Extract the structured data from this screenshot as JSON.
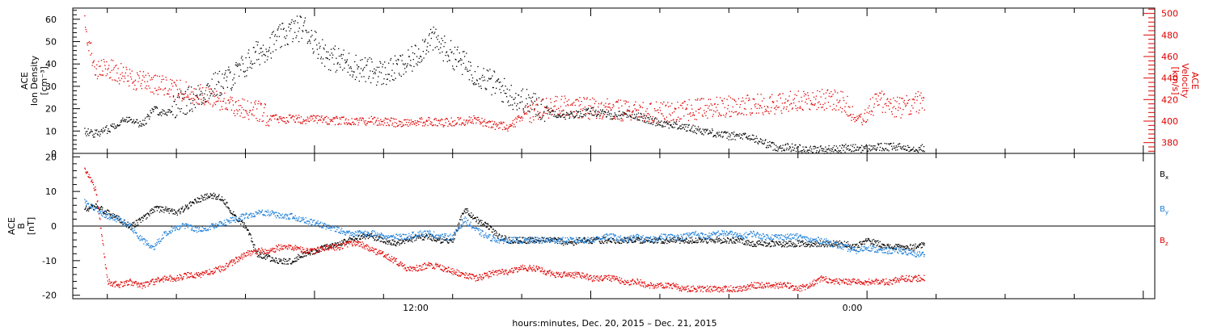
{
  "colors": {
    "black": "#000000",
    "red": "#e00000",
    "blue": "#1e7fd8"
  },
  "chart_data": [
    {
      "type": "scatter",
      "panel": "plasma",
      "ylabel_lines": [
        "ACE",
        "Ion Density",
        "[cm⁻³]"
      ],
      "ylim": [
        0,
        65
      ],
      "yticks": [
        0,
        10,
        20,
        30,
        40,
        50,
        60
      ],
      "y2label_lines": [
        "ACE",
        "Velocity",
        "[km/s]"
      ],
      "y2lim": [
        370,
        505
      ],
      "y2ticks": [
        380,
        400,
        420,
        440,
        460,
        480,
        500
      ],
      "grid": false,
      "series": [
        {
          "axis": "left",
          "color": "#000000",
          "x": [
            -10,
            -9.5,
            -9,
            -8.5,
            -8,
            -7.5,
            -7,
            -6.5,
            -6,
            -5.5,
            -5,
            -4.5,
            -4,
            -3.5,
            -3,
            -2.5,
            -2,
            -1.5,
            -1,
            -0.5,
            0,
            0.5,
            1,
            1.5,
            2,
            2.5,
            3,
            3.5,
            4,
            4.5,
            5,
            5.5,
            6,
            6.5,
            7,
            7.5,
            8,
            8.5,
            9,
            9.5,
            10,
            10.5,
            11,
            11.5,
            12,
            12.5,
            13,
            13.5,
            14,
            14.5,
            15,
            15.5,
            16,
            16.5,
            17,
            17.5,
            18,
            18.5,
            19,
            19.5,
            20,
            20.5,
            21,
            21.5,
            22,
            22.5,
            23,
            23.5,
            24,
            24.5,
            25,
            25.5,
            26,
            26.5
          ],
          "y": [
            10,
            9,
            11,
            14,
            16,
            13,
            20,
            18,
            22,
            24,
            26,
            30,
            32,
            35,
            40,
            45,
            48,
            52,
            55,
            57,
            50,
            44,
            42,
            40,
            38,
            37,
            36,
            38,
            40,
            45,
            52,
            48,
            44,
            40,
            36,
            33,
            30,
            26,
            24,
            22,
            20,
            18,
            17,
            18,
            19,
            18,
            17,
            18,
            17,
            15,
            14,
            13,
            12,
            11,
            10,
            9,
            8,
            8,
            7,
            5,
            3,
            3,
            2.5,
            2,
            2,
            2,
            2.5,
            2.5,
            2.5,
            3,
            3,
            3,
            2.5,
            2.5
          ]
        },
        {
          "axis": "right",
          "color": "#e00000",
          "x": [
            -10,
            -9.5,
            -9,
            -8.5,
            -8,
            -7.5,
            -7,
            -6.5,
            -6,
            -5.5,
            -5,
            -4.5,
            -4,
            -3.5,
            -3,
            -2.5,
            -2,
            -1.5,
            -1,
            -0.5,
            0,
            0.5,
            1,
            1.5,
            2,
            2.5,
            3,
            3.5,
            4,
            4.5,
            5,
            5.5,
            6,
            6.5,
            7,
            7.5,
            8,
            8.5,
            9,
            9.5,
            10,
            10.5,
            11,
            11.5,
            12,
            12.5,
            13,
            13.5,
            14,
            14.5,
            15,
            15.5,
            16,
            16.5,
            17,
            17.5,
            18,
            18.5,
            19,
            19.5,
            20,
            20.5,
            21,
            21.5,
            22,
            22.5,
            23,
            23.5,
            24,
            24.5,
            25,
            25.5,
            26,
            26.5
          ],
          "y": [
            490,
            445,
            450,
            445,
            440,
            438,
            435,
            432,
            430,
            428,
            425,
            422,
            420,
            415,
            412,
            410,
            405,
            402,
            403,
            402,
            402,
            401,
            401,
            400,
            400,
            401,
            400,
            399,
            399,
            400,
            400,
            399,
            400,
            400,
            402,
            398,
            396,
            395,
            405,
            410,
            412,
            415,
            414,
            413,
            412,
            412,
            410,
            410,
            409,
            409,
            408,
            409,
            410,
            411,
            412,
            413,
            414,
            415,
            416,
            416,
            417,
            418,
            419,
            421,
            421,
            420,
            418,
            400,
            410,
            420,
            415,
            412,
            418,
            418
          ]
        }
      ]
    },
    {
      "type": "scatter",
      "panel": "magnetic-field",
      "ylabel_lines": [
        "ACE",
        "B",
        "[nT]"
      ],
      "ylim": [
        -21,
        21
      ],
      "yticks": [
        -20,
        -10,
        0,
        10,
        20
      ],
      "zero_line": true,
      "grid": false,
      "series": [
        {
          "name": "Bx",
          "color": "#000000",
          "x": [
            -10,
            -9.5,
            -9,
            -8.5,
            -8,
            -7.5,
            -7,
            -6.5,
            -6,
            -5.5,
            -5,
            -4.5,
            -4,
            -3.5,
            -3,
            -2.5,
            -2,
            -1.5,
            -1,
            -0.5,
            0,
            0.5,
            1,
            1.5,
            2,
            2.5,
            3,
            3.5,
            4,
            4.5,
            5,
            5.5,
            6,
            6.5,
            7,
            7.5,
            8,
            8.5,
            9,
            9.5,
            10,
            10.5,
            11,
            11.5,
            12,
            12.5,
            13,
            13.5,
            14,
            14.5,
            15,
            15.5,
            16,
            16.5,
            17,
            17.5,
            18,
            18.5,
            19,
            19.5,
            20,
            20.5,
            21,
            21.5,
            22,
            22.5,
            23,
            23.5,
            24,
            24.5,
            25,
            25.5,
            26,
            26.5
          ],
          "y": [
            5,
            6,
            4,
            2,
            0,
            2,
            5,
            5,
            4,
            6,
            8,
            9,
            8,
            3,
            0,
            -8,
            -9,
            -10,
            -10,
            -8,
            -7,
            -6,
            -5,
            -4,
            -3,
            -3,
            -4,
            -5,
            -4,
            -3,
            -3,
            -4,
            -4,
            5,
            2,
            0,
            -3,
            -4,
            -4,
            -4,
            -4,
            -4,
            -5,
            -4,
            -4,
            -4,
            -4,
            -4,
            -4,
            -4,
            -4,
            -4,
            -4,
            -4,
            -4,
            -4,
            -4,
            -4,
            -5,
            -5,
            -5,
            -5,
            -5,
            -5,
            -5,
            -5,
            -5,
            -6,
            -4,
            -5,
            -6,
            -6,
            -6,
            -5
          ]
        },
        {
          "name": "By",
          "color": "#1e7fd8",
          "x": [
            -10,
            -9.5,
            -9,
            -8.5,
            -8,
            -7.5,
            -7,
            -6.5,
            -6,
            -5.5,
            -5,
            -4.5,
            -4,
            -3.5,
            -3,
            -2.5,
            -2,
            -1.5,
            -1,
            -0.5,
            0,
            0.5,
            1,
            1.5,
            2,
            2.5,
            3,
            3.5,
            4,
            4.5,
            5,
            5.5,
            6,
            6.5,
            7,
            7.5,
            8,
            8.5,
            9,
            9.5,
            10,
            10.5,
            11,
            11.5,
            12,
            12.5,
            13,
            13.5,
            14,
            14.5,
            15,
            15.5,
            16,
            16.5,
            17,
            17.5,
            18,
            18.5,
            19,
            19.5,
            20,
            20.5,
            21,
            21.5,
            22,
            22.5,
            23,
            23.5,
            24,
            24.5,
            25,
            25.5,
            26,
            26.5
          ],
          "y": [
            7,
            5,
            3,
            2,
            0,
            -4,
            -6,
            -2,
            0,
            0,
            -1,
            0,
            1,
            2,
            3,
            4,
            4,
            3,
            3,
            2,
            1,
            0,
            -1,
            -2,
            -2,
            -2,
            -3,
            -3,
            -3,
            -2,
            -2,
            -3,
            -3,
            2,
            -1,
            -3,
            -4,
            -4,
            -4,
            -4,
            -4,
            -4,
            -4,
            -4,
            -4,
            -3,
            -3,
            -4,
            -3,
            -4,
            -3,
            -3,
            -3,
            -2,
            -3,
            -2,
            -2,
            -3,
            -2,
            -3,
            -3,
            -3,
            -3,
            -4,
            -4,
            -5,
            -6,
            -7,
            -6,
            -7,
            -7,
            -7,
            -8,
            -8
          ]
        },
        {
          "name": "Bz",
          "color": "#e00000",
          "x": [
            -10,
            -9.5,
            -9,
            -8.5,
            -8,
            -7.5,
            -7,
            -6.5,
            -6,
            -5.5,
            -5,
            -4.5,
            -4,
            -3.5,
            -3,
            -2.5,
            -2,
            -1.5,
            -1,
            -0.5,
            0,
            0.5,
            1,
            1.5,
            2,
            2.5,
            3,
            3.5,
            4,
            4.5,
            5,
            5.5,
            6,
            6.5,
            7,
            7.5,
            8,
            8.5,
            9,
            9.5,
            10,
            10.5,
            11,
            11.5,
            12,
            12.5,
            13,
            13.5,
            14,
            14.5,
            15,
            15.5,
            16,
            16.5,
            17,
            17.5,
            18,
            18.5,
            19,
            19.5,
            20,
            20.5,
            21,
            21.5,
            22,
            22.5,
            23,
            23.5,
            24,
            24.5,
            25,
            25.5,
            26,
            26.5
          ],
          "y": [
            17,
            10,
            -16,
            -17,
            -16,
            -17,
            -16,
            -15,
            -15,
            -14,
            -14,
            -13,
            -12,
            -10,
            -8,
            -7,
            -7,
            -6,
            -6,
            -7,
            -7,
            -6,
            -6,
            -5,
            -5,
            -7,
            -8,
            -10,
            -12,
            -12,
            -11,
            -12,
            -13,
            -14,
            -15,
            -14,
            -13,
            -13,
            -12,
            -12,
            -13,
            -14,
            -14,
            -14,
            -15,
            -15,
            -15,
            -16,
            -16,
            -17,
            -17,
            -17,
            -18,
            -18,
            -18,
            -18,
            -18,
            -18,
            -17,
            -17,
            -17,
            -17,
            -18,
            -17,
            -15,
            -16,
            -16,
            -16,
            -16,
            -16,
            -16,
            -15,
            -15,
            -15
          ]
        }
      ],
      "legend": [
        "B_x",
        "B_y",
        "B_z"
      ],
      "legend_placement": "right"
    }
  ],
  "x_axis": {
    "tick_labels": [
      "12:00",
      "0:00"
    ],
    "label": "hours:minutes, Dec. 20, 2015 – Dec. 21, 2015"
  }
}
